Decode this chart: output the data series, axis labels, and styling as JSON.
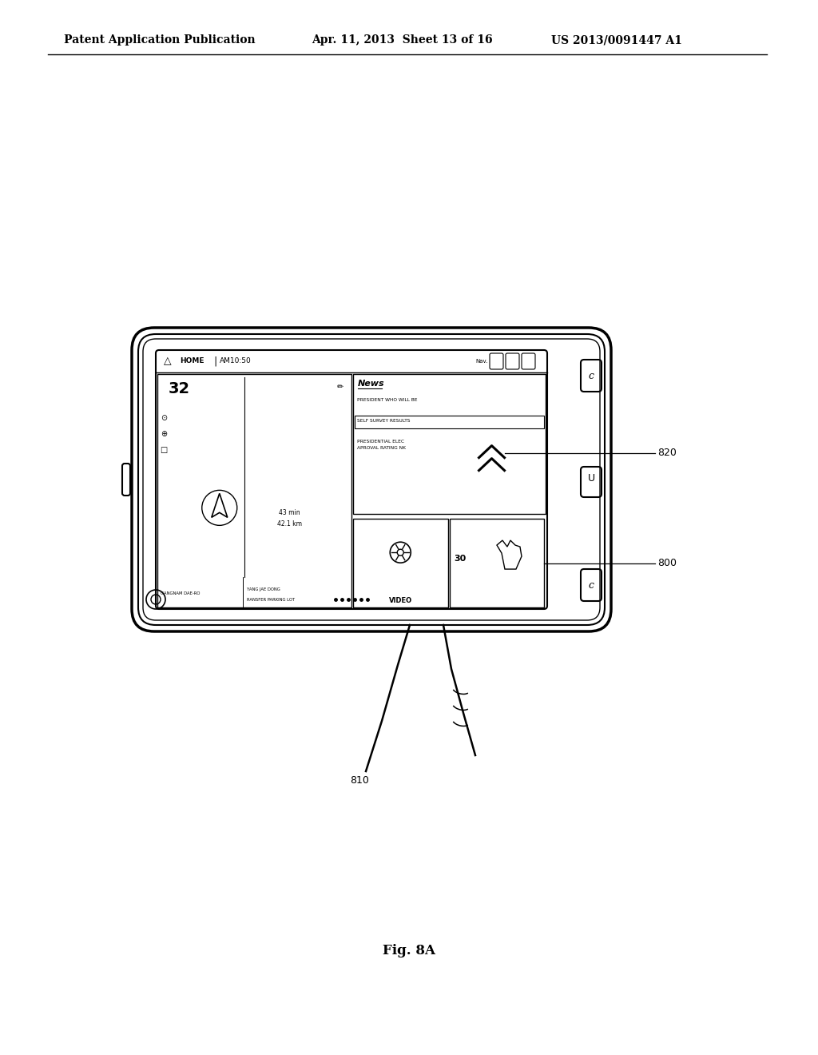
{
  "bg_color": "#ffffff",
  "line_color": "#000000",
  "header_text_left": "Patent Application Publication",
  "header_text_mid": "Apr. 11, 2013  Sheet 13 of 16",
  "header_text_right": "US 2013/0091447 A1",
  "fig_label": "Fig. 8A",
  "label_800": "800",
  "label_810": "810",
  "label_820": "820"
}
